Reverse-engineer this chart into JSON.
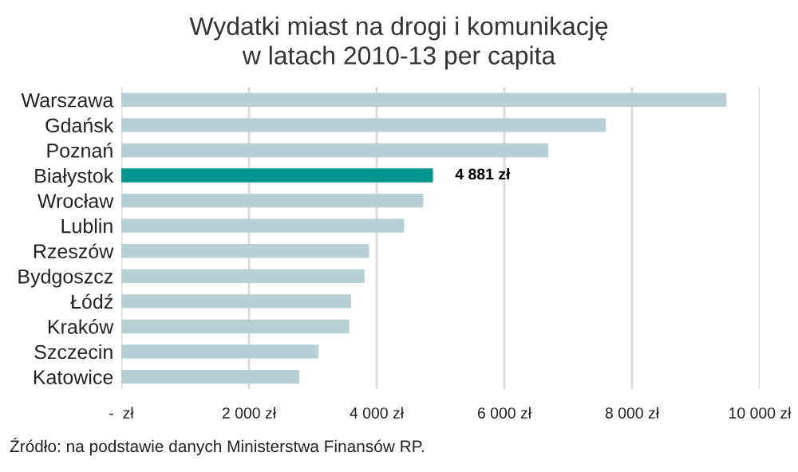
{
  "chart_data": {
    "type": "bar",
    "orientation": "horizontal",
    "title": "Wydatki miast na drogi i komunikację\nw latach 2010-13 per capita",
    "categories": [
      "Warszawa",
      "Gdańsk",
      "Poznań",
      "Białystok",
      "Wrocław",
      "Lublin",
      "Rzeszów",
      "Bydgoszcz",
      "Łódź",
      "Kraków",
      "Szczecin",
      "Katowice"
    ],
    "values": [
      9480,
      7590,
      6690,
      4881,
      4730,
      4430,
      3880,
      3810,
      3600,
      3570,
      3090,
      2790
    ],
    "colors": [
      "#b7d0d4",
      "#b7d0d4",
      "#b7d0d4",
      "#00958f",
      "#b7d0d4",
      "#b7d0d4",
      "#b7d0d4",
      "#b7d0d4",
      "#b7d0d4",
      "#b7d0d4",
      "#b7d0d4",
      "#b7d0d4"
    ],
    "value_labels": [
      null,
      null,
      null,
      "4 881 zł",
      null,
      null,
      null,
      null,
      null,
      null,
      null,
      null
    ],
    "xlim": [
      0,
      10000
    ],
    "xticks": [
      {
        "value": 0,
        "label": "-  zł"
      },
      {
        "value": 2000,
        "label": "2 000 zł"
      },
      {
        "value": 4000,
        "label": "4 000 zł"
      },
      {
        "value": 6000,
        "label": "6 000 zł"
      },
      {
        "value": 8000,
        "label": "8 000 zł"
      },
      {
        "value": 10000,
        "label": "10 000 zł"
      }
    ],
    "grid": "x",
    "legend": false,
    "annotations": [
      "Źródło: na podstawie danych Ministerstwa Finansów RP."
    ]
  }
}
